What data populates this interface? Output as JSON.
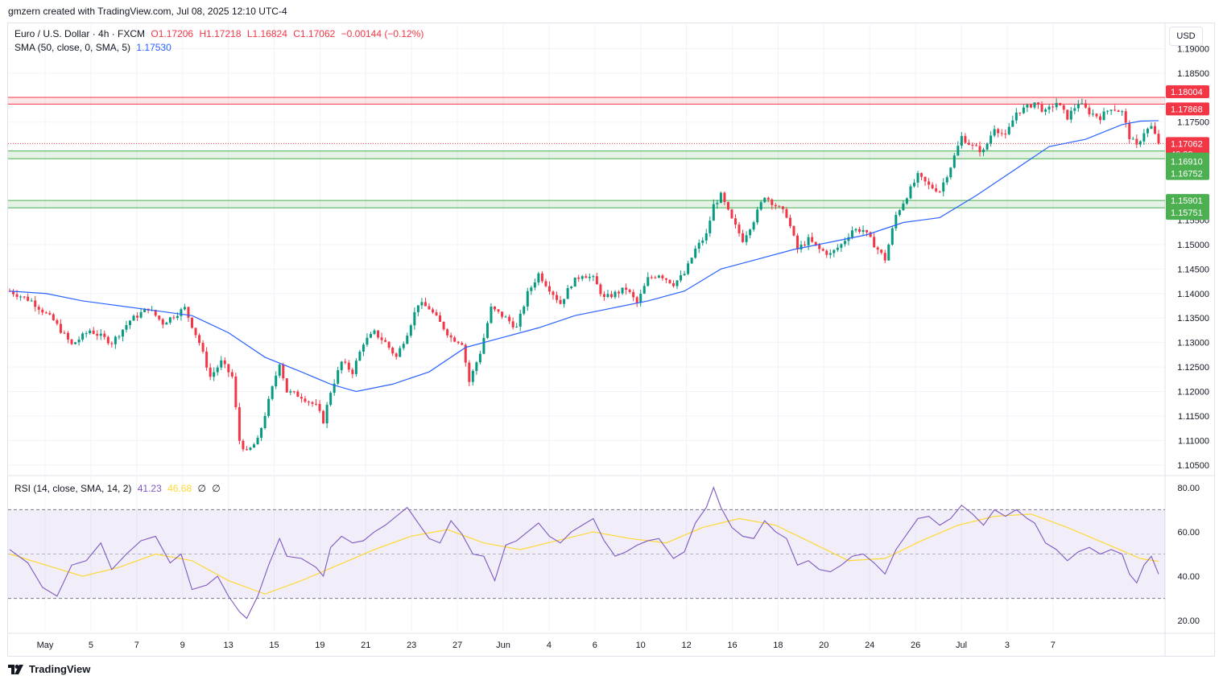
{
  "header": {
    "created_by": "gmzern created with TradingView.com, Jul 08, 2025 12:10 UTC-4"
  },
  "legend": {
    "symbol": "Euro / U.S. Dollar · 4h · FXCM",
    "open": "O1.17206",
    "high": "H1.17218",
    "low": "L1.16824",
    "close": "C1.17062",
    "change": "−0.00144 (−0.12%)",
    "sma_label": "SMA (50, close, 0, SMA, 5)",
    "sma_value": "1.17530",
    "rsi_label": "RSI (14, close, SMA, 14, 2)",
    "rsi_value": "41.23",
    "rsi_ma_value": "46.68",
    "rsi_extra1": "∅",
    "rsi_extra2": "∅"
  },
  "currency_button": "USD",
  "footer": {
    "brand": "TradingView"
  },
  "colors": {
    "up": "#089981",
    "down": "#f23645",
    "sma": "#2962ff",
    "rsi": "#7e57c2",
    "rsi_ma": "#fdd835",
    "resistance": "#f23645",
    "support": "#4caf50",
    "grid": "#f0f3fa"
  },
  "chart_data": [
    {
      "type": "candlestick",
      "title": "Euro / U.S. Dollar · 4h · FXCM",
      "ylim": [
        1.103,
        1.195
      ],
      "y_ticks": [
        "1.19000",
        "1.18500",
        "1.17500",
        "1.15000",
        "1.14500",
        "1.14000",
        "1.13500",
        "1.13000",
        "1.12500",
        "1.12000",
        "1.11500",
        "1.11000",
        "1.10500"
      ],
      "x_tick_labels": [
        "May",
        "5",
        "7",
        "9",
        "13",
        "15",
        "19",
        "21",
        "23",
        "27",
        "Jun",
        "4",
        "6",
        "10",
        "12",
        "16",
        "18",
        "20",
        "24",
        "26",
        "Jul",
        "3",
        "7"
      ],
      "close_path": [
        [
          0,
          1.1405
        ],
        [
          6,
          1.1385
        ],
        [
          12,
          1.1345
        ],
        [
          17,
          1.1295
        ],
        [
          22,
          1.1325
        ],
        [
          28,
          1.13
        ],
        [
          33,
          1.1345
        ],
        [
          38,
          1.137
        ],
        [
          42,
          1.134
        ],
        [
          48,
          1.137
        ],
        [
          52,
          1.13
        ],
        [
          55,
          1.123
        ],
        [
          58,
          1.126
        ],
        [
          61,
          1.123
        ],
        [
          63,
          1.11
        ],
        [
          65,
          1.1075
        ],
        [
          68,
          1.11
        ],
        [
          71,
          1.118
        ],
        [
          74,
          1.126
        ],
        [
          76,
          1.12
        ],
        [
          80,
          1.119
        ],
        [
          84,
          1.117
        ],
        [
          86,
          1.114
        ],
        [
          88,
          1.12
        ],
        [
          91,
          1.126
        ],
        [
          94,
          1.124
        ],
        [
          97,
          1.13
        ],
        [
          100,
          1.132
        ],
        [
          103,
          1.13
        ],
        [
          106,
          1.127
        ],
        [
          109,
          1.132
        ],
        [
          112,
          1.138
        ],
        [
          115,
          1.137
        ],
        [
          118,
          1.134
        ],
        [
          121,
          1.131
        ],
        [
          124,
          1.13
        ],
        [
          126,
          1.122
        ],
        [
          129,
          1.128
        ],
        [
          132,
          1.137
        ],
        [
          136,
          1.135
        ],
        [
          139,
          1.133
        ],
        [
          142,
          1.14
        ],
        [
          145,
          1.144
        ],
        [
          148,
          1.141
        ],
        [
          151,
          1.138
        ],
        [
          154,
          1.142
        ],
        [
          157,
          1.144
        ],
        [
          160,
          1.143
        ],
        [
          163,
          1.139
        ],
        [
          166,
          1.14
        ],
        [
          169,
          1.141
        ],
        [
          172,
          1.138
        ],
        [
          175,
          1.143
        ],
        [
          178,
          1.144
        ],
        [
          182,
          1.142
        ],
        [
          185,
          1.144
        ],
        [
          188,
          1.149
        ],
        [
          191,
          1.152
        ],
        [
          193,
          1.158
        ],
        [
          195,
          1.16
        ],
        [
          198,
          1.155
        ],
        [
          201,
          1.151
        ],
        [
          204,
          1.155
        ],
        [
          207,
          1.16
        ],
        [
          210,
          1.158
        ],
        [
          213,
          1.156
        ],
        [
          216,
          1.149
        ],
        [
          219,
          1.151
        ],
        [
          222,
          1.149
        ],
        [
          225,
          1.148
        ],
        [
          228,
          1.15
        ],
        [
          231,
          1.153
        ],
        [
          234,
          1.153
        ],
        [
          237,
          1.15
        ],
        [
          240,
          1.147
        ],
        [
          243,
          1.156
        ],
        [
          246,
          1.16
        ],
        [
          249,
          1.164
        ],
        [
          252,
          1.162
        ],
        [
          255,
          1.161
        ],
        [
          258,
          1.166
        ],
        [
          261,
          1.172
        ],
        [
          264,
          1.17
        ],
        [
          267,
          1.169
        ],
        [
          270,
          1.174
        ],
        [
          273,
          1.172
        ],
        [
          276,
          1.177
        ],
        [
          279,
          1.178
        ],
        [
          281,
          1.179
        ],
        [
          284,
          1.177
        ],
        [
          287,
          1.179
        ],
        [
          290,
          1.176
        ],
        [
          293,
          1.179
        ],
        [
          296,
          1.177
        ],
        [
          299,
          1.176
        ],
        [
          302,
          1.178
        ],
        [
          305,
          1.177
        ],
        [
          307,
          1.172
        ],
        [
          309,
          1.17
        ],
        [
          311,
          1.173
        ],
        [
          313,
          1.174
        ],
        [
          315,
          1.1706
        ]
      ],
      "sma_path": [
        [
          0,
          1.1405
        ],
        [
          10,
          1.14
        ],
        [
          20,
          1.1385
        ],
        [
          30,
          1.1375
        ],
        [
          40,
          1.1365
        ],
        [
          50,
          1.1355
        ],
        [
          60,
          1.132
        ],
        [
          70,
          1.127
        ],
        [
          80,
          1.124
        ],
        [
          88,
          1.1215
        ],
        [
          95,
          1.12
        ],
        [
          105,
          1.1215
        ],
        [
          115,
          1.124
        ],
        [
          125,
          1.129
        ],
        [
          135,
          1.131
        ],
        [
          145,
          1.133
        ],
        [
          155,
          1.1355
        ],
        [
          165,
          1.137
        ],
        [
          175,
          1.1385
        ],
        [
          185,
          1.1405
        ],
        [
          195,
          1.145
        ],
        [
          205,
          1.147
        ],
        [
          215,
          1.149
        ],
        [
          225,
          1.1505
        ],
        [
          235,
          1.152
        ],
        [
          245,
          1.1545
        ],
        [
          255,
          1.1555
        ],
        [
          265,
          1.16
        ],
        [
          275,
          1.165
        ],
        [
          285,
          1.17
        ],
        [
          295,
          1.1715
        ],
        [
          305,
          1.1745
        ],
        [
          310,
          1.1752
        ],
        [
          315,
          1.1753
        ]
      ],
      "levels": {
        "resistance": [
          1.18004,
          1.17868
        ],
        "support_upper": [
          1.1691,
          1.16752
        ],
        "support_lower": [
          1.15901,
          1.15751
        ],
        "current": 1.17062
      },
      "price_labels": {
        "r1": "1.18004",
        "r2": "1.17868",
        "current": "1.17062",
        "countdown": "49:33",
        "s1": "1.16910",
        "s2": "1.16752",
        "s3": "1.15901",
        "s4": "1.15751",
        "hidden_tick": "1.15500"
      }
    },
    {
      "type": "line",
      "title": "RSI (14, close, SMA, 14, 2)",
      "ylim": [
        15,
        85
      ],
      "y_ticks": [
        "80.00",
        "60.00",
        "40.00",
        "20.00"
      ],
      "bands": [
        30,
        70
      ],
      "midline": 50,
      "rsi_path": [
        [
          0,
          52
        ],
        [
          5,
          46
        ],
        [
          9,
          35
        ],
        [
          13,
          31
        ],
        [
          17,
          45
        ],
        [
          21,
          47
        ],
        [
          25,
          55
        ],
        [
          28,
          43
        ],
        [
          32,
          50
        ],
        [
          36,
          56
        ],
        [
          40,
          58
        ],
        [
          44,
          46
        ],
        [
          47,
          50
        ],
        [
          50,
          34
        ],
        [
          54,
          36
        ],
        [
          57,
          40
        ],
        [
          60,
          31
        ],
        [
          63,
          24
        ],
        [
          65,
          21
        ],
        [
          68,
          31
        ],
        [
          71,
          45
        ],
        [
          74,
          57
        ],
        [
          76,
          49
        ],
        [
          80,
          48
        ],
        [
          84,
          44
        ],
        [
          86,
          40
        ],
        [
          88,
          53
        ],
        [
          91,
          58
        ],
        [
          94,
          55
        ],
        [
          97,
          56
        ],
        [
          100,
          60
        ],
        [
          103,
          63
        ],
        [
          106,
          67
        ],
        [
          109,
          71
        ],
        [
          112,
          64
        ],
        [
          115,
          57
        ],
        [
          118,
          55
        ],
        [
          121,
          65
        ],
        [
          124,
          59
        ],
        [
          127,
          50
        ],
        [
          130,
          49
        ],
        [
          133,
          38
        ],
        [
          136,
          54
        ],
        [
          139,
          56
        ],
        [
          142,
          60
        ],
        [
          145,
          64
        ],
        [
          148,
          58
        ],
        [
          151,
          55
        ],
        [
          154,
          60
        ],
        [
          157,
          63
        ],
        [
          160,
          66
        ],
        [
          163,
          56
        ],
        [
          166,
          49
        ],
        [
          169,
          51
        ],
        [
          172,
          54
        ],
        [
          175,
          56
        ],
        [
          178,
          57
        ],
        [
          182,
          48
        ],
        [
          185,
          51
        ],
        [
          188,
          64
        ],
        [
          191,
          71
        ],
        [
          193,
          80
        ],
        [
          195,
          71
        ],
        [
          198,
          62
        ],
        [
          201,
          58
        ],
        [
          204,
          57
        ],
        [
          207,
          65
        ],
        [
          210,
          60
        ],
        [
          213,
          57
        ],
        [
          216,
          45
        ],
        [
          219,
          47
        ],
        [
          222,
          43
        ],
        [
          225,
          42
        ],
        [
          228,
          45
        ],
        [
          231,
          49
        ],
        [
          234,
          50
        ],
        [
          237,
          46
        ],
        [
          240,
          41
        ],
        [
          243,
          52
        ],
        [
          246,
          59
        ],
        [
          249,
          66
        ],
        [
          252,
          67
        ],
        [
          255,
          63
        ],
        [
          258,
          66
        ],
        [
          261,
          72
        ],
        [
          264,
          68
        ],
        [
          267,
          63
        ],
        [
          270,
          70
        ],
        [
          273,
          67
        ],
        [
          276,
          70
        ],
        [
          279,
          66
        ],
        [
          281,
          64
        ],
        [
          284,
          55
        ],
        [
          287,
          52
        ],
        [
          290,
          47
        ],
        [
          293,
          51
        ],
        [
          296,
          53
        ],
        [
          299,
          50
        ],
        [
          302,
          52
        ],
        [
          305,
          50
        ],
        [
          307,
          41
        ],
        [
          309,
          37
        ],
        [
          311,
          45
        ],
        [
          313,
          49
        ],
        [
          315,
          41
        ]
      ],
      "rsi_ma_path": [
        [
          0,
          50
        ],
        [
          10,
          45
        ],
        [
          20,
          40
        ],
        [
          30,
          44
        ],
        [
          40,
          50
        ],
        [
          50,
          47
        ],
        [
          60,
          38
        ],
        [
          70,
          32
        ],
        [
          80,
          38
        ],
        [
          90,
          45
        ],
        [
          100,
          52
        ],
        [
          110,
          58
        ],
        [
          120,
          61
        ],
        [
          130,
          55
        ],
        [
          140,
          52
        ],
        [
          150,
          56
        ],
        [
          160,
          60
        ],
        [
          170,
          57
        ],
        [
          180,
          55
        ],
        [
          190,
          62
        ],
        [
          200,
          66
        ],
        [
          210,
          63
        ],
        [
          220,
          55
        ],
        [
          230,
          47
        ],
        [
          240,
          48
        ],
        [
          250,
          56
        ],
        [
          260,
          63
        ],
        [
          270,
          67
        ],
        [
          280,
          68
        ],
        [
          290,
          62
        ],
        [
          300,
          55
        ],
        [
          310,
          48
        ],
        [
          315,
          46.68
        ]
      ]
    }
  ]
}
